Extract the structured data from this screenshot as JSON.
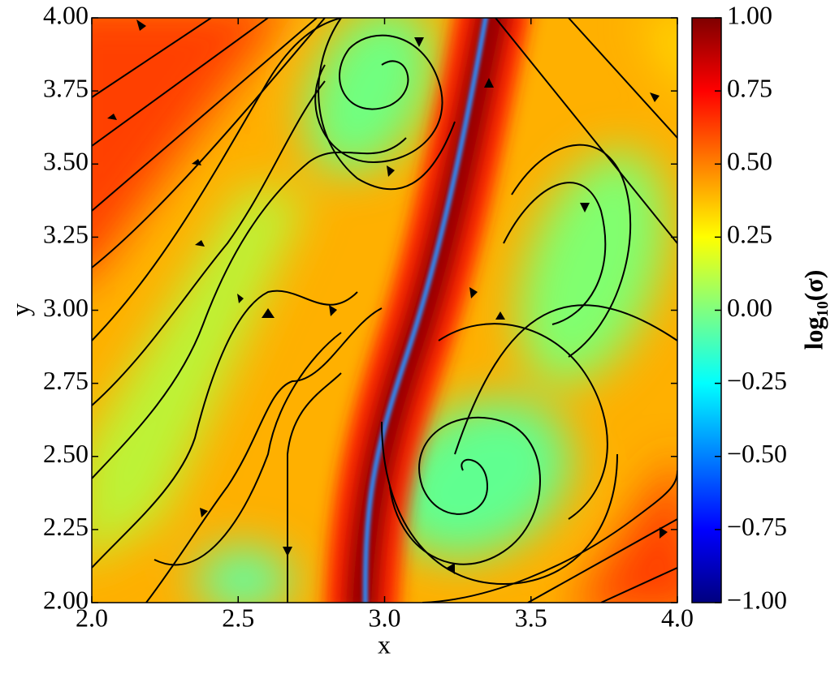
{
  "chart_data": {
    "type": "heatmap",
    "colormap": "jet",
    "xlabel": "x",
    "ylabel": "y",
    "colorbar_label": "log₁₀(σ)",
    "xlim": [
      2,
      4
    ],
    "ylim": [
      2,
      4
    ],
    "xticks": [
      {
        "value": 2,
        "label": "2.0"
      },
      2.5,
      {
        "value": 3,
        "label": "3.0"
      },
      3.5,
      {
        "value": 4,
        "label": "4.0"
      }
    ],
    "yticks": [
      {
        "value": 2,
        "label": "2.00"
      },
      2.25,
      {
        "value": 2.5,
        "label": "2.50"
      },
      2.75,
      {
        "value": 3,
        "label": "3.00"
      },
      3.25,
      {
        "value": 3.5,
        "label": "3.50"
      },
      3.75,
      {
        "value": 4,
        "label": "4.00"
      }
    ],
    "clim": [
      -1,
      1
    ],
    "cticks": [
      {
        "value": -1,
        "label": "−1.00"
      },
      {
        "value": -0.75,
        "label": "−0.75"
      },
      {
        "value": -0.5,
        "label": "−0.50"
      },
      {
        "value": -0.25,
        "label": "−0.25"
      },
      {
        "value": 0,
        "label": "0.00"
      },
      0.25,
      {
        "value": 0.5,
        "label": "0.50"
      },
      0.75,
      {
        "value": 1,
        "label": "1.00"
      }
    ]
  }
}
